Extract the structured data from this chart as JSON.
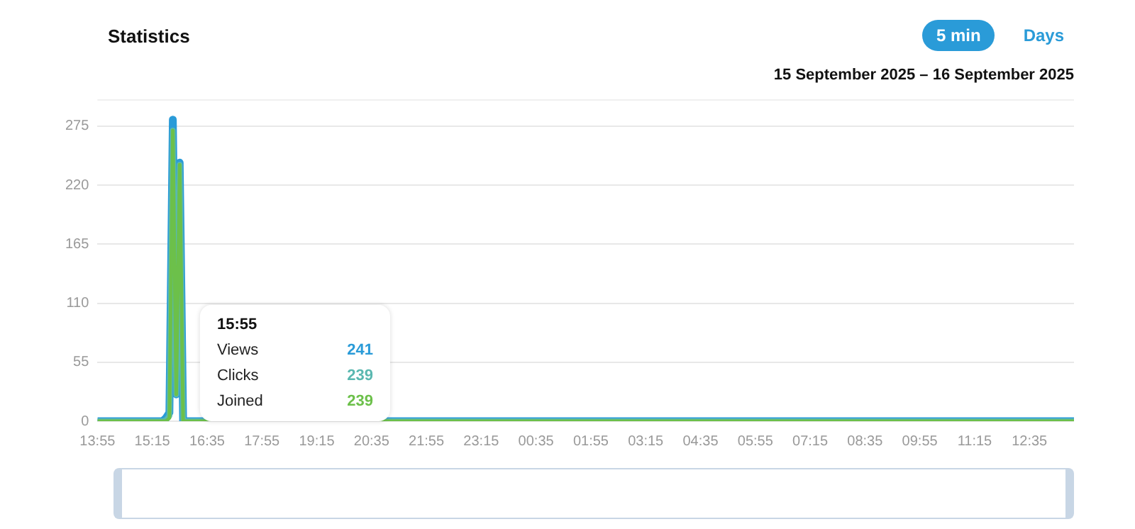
{
  "chart_data": {
    "type": "line",
    "title": "Statistics",
    "subtitle": "15 September 2025 – 16 September 2025",
    "annotations": [
      "5 min",
      "Days",
      "15:55",
      "241",
      "239",
      "239"
    ],
    "x": [
      "2025-09-15T13:55",
      "2025-09-15T15:30",
      "2025-09-15T15:35",
      "2025-09-15T15:40",
      "2025-09-15T15:45",
      "2025-09-15T15:50",
      "2025-09-15T15:55",
      "2025-09-15T16:00",
      "2025-09-16T13:40"
    ],
    "series": [
      {
        "name": "Views",
        "color": "#2a9bd8",
        "values": [
          0,
          0,
          3,
          8,
          281,
          25,
          241,
          0,
          0
        ]
      },
      {
        "name": "Clicks",
        "color": "#5ab8b0",
        "values": [
          0,
          0,
          1,
          5,
          271,
          25,
          239,
          0,
          0
        ]
      },
      {
        "name": "Joined",
        "color": "#6cc04a",
        "values": [
          0,
          0,
          0,
          3,
          271,
          25,
          239,
          0,
          0
        ]
      }
    ],
    "xlim": [
      "2025-09-15T13:55",
      "2025-09-16T13:40"
    ],
    "xticks": [
      {
        "value": "2025-09-15T13:55",
        "label": "13:55"
      },
      {
        "value": "2025-09-15T15:15",
        "label": "15:15"
      },
      {
        "value": "2025-09-15T16:35",
        "label": "16:35"
      },
      {
        "value": "2025-09-15T17:55",
        "label": "17:55"
      },
      {
        "value": "2025-09-15T19:15",
        "label": "19:15"
      },
      {
        "value": "2025-09-15T20:35",
        "label": "20:35"
      },
      {
        "value": "2025-09-15T21:55",
        "label": "21:55"
      },
      {
        "value": "2025-09-15T23:15",
        "label": "23:15"
      },
      {
        "value": "2025-09-16T00:35",
        "label": "00:35"
      },
      {
        "value": "2025-09-16T01:55",
        "label": "01:55"
      },
      {
        "value": "2025-09-16T03:15",
        "label": "03:15"
      },
      {
        "value": "2025-09-16T04:35",
        "label": "04:35"
      },
      {
        "value": "2025-09-16T05:55",
        "label": "05:55"
      },
      {
        "value": "2025-09-16T07:15",
        "label": "07:15"
      },
      {
        "value": "2025-09-16T08:35",
        "label": "08:35"
      },
      {
        "value": "2025-09-16T09:55",
        "label": "09:55"
      },
      {
        "value": "2025-09-16T11:15",
        "label": "11:15"
      },
      {
        "value": "2025-09-16T12:35",
        "label": "12:35"
      }
    ],
    "ylim": [
      0,
      300
    ],
    "yticks": [
      0,
      55,
      110,
      165,
      220,
      275
    ],
    "grid": "y",
    "legend": false,
    "marker": "none",
    "line_style": "solid"
  }
}
